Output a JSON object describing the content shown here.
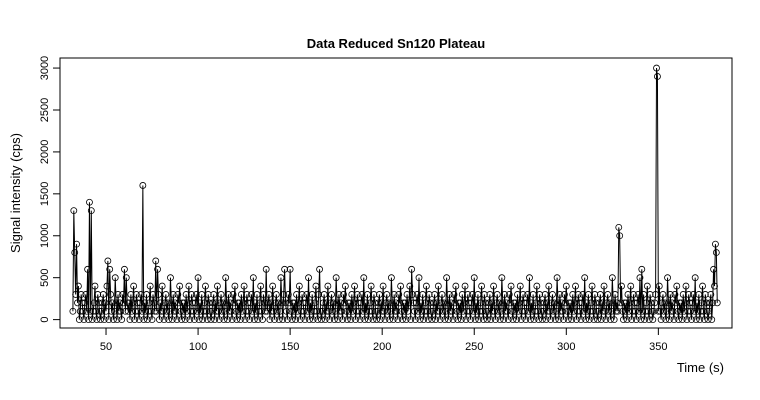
{
  "chart_data": {
    "type": "scatter",
    "title": "Data Reduced Sn120 Plateau",
    "xlabel": "Time (s)",
    "ylabel": "Signal intensity (cps)",
    "xlim": [
      25,
      390
    ],
    "ylim": [
      -100,
      3120
    ],
    "xticks": [
      50,
      100,
      150,
      200,
      250,
      300,
      350
    ],
    "yticks": [
      0,
      500,
      1000,
      1500,
      2000,
      2500,
      3000
    ],
    "grid": false,
    "legend": "none",
    "point_style": "open-circle",
    "connected": true,
    "x_start": 32,
    "x_step": 0.5,
    "baseline_pattern": [
      100,
      200,
      0,
      300,
      100,
      200,
      400,
      0,
      100,
      300,
      200,
      100,
      0,
      200,
      300,
      100,
      500,
      0,
      200,
      100,
      300,
      0,
      100,
      200,
      400,
      100,
      0,
      300,
      200,
      100,
      0,
      100,
      200,
      300,
      0,
      200,
      100,
      400,
      100,
      0,
      200,
      300,
      100,
      200,
      0,
      100,
      500,
      200,
      0,
      300,
      100,
      200,
      100,
      0,
      300,
      200,
      400,
      100,
      0,
      200
    ],
    "peaks": [
      {
        "x": 32.5,
        "y": 1300
      },
      {
        "x": 33,
        "y": 800
      },
      {
        "x": 34,
        "y": 900
      },
      {
        "x": 35,
        "y": 400
      },
      {
        "x": 40,
        "y": 600
      },
      {
        "x": 41,
        "y": 1400
      },
      {
        "x": 42,
        "y": 1300
      },
      {
        "x": 51,
        "y": 700
      },
      {
        "x": 52,
        "y": 600
      },
      {
        "x": 60,
        "y": 600
      },
      {
        "x": 61,
        "y": 500
      },
      {
        "x": 70,
        "y": 1600
      },
      {
        "x": 77,
        "y": 700
      },
      {
        "x": 78,
        "y": 600
      },
      {
        "x": 137,
        "y": 600
      },
      {
        "x": 147,
        "y": 600
      },
      {
        "x": 150,
        "y": 600
      },
      {
        "x": 166,
        "y": 600
      },
      {
        "x": 216,
        "y": 600
      },
      {
        "x": 328.5,
        "y": 1100
      },
      {
        "x": 329,
        "y": 1000
      },
      {
        "x": 341,
        "y": 600
      },
      {
        "x": 349,
        "y": 3000
      },
      {
        "x": 349.5,
        "y": 2900
      },
      {
        "x": 380,
        "y": 600
      },
      {
        "x": 381,
        "y": 900
      },
      {
        "x": 381.5,
        "y": 800
      }
    ],
    "x_end": 382
  }
}
